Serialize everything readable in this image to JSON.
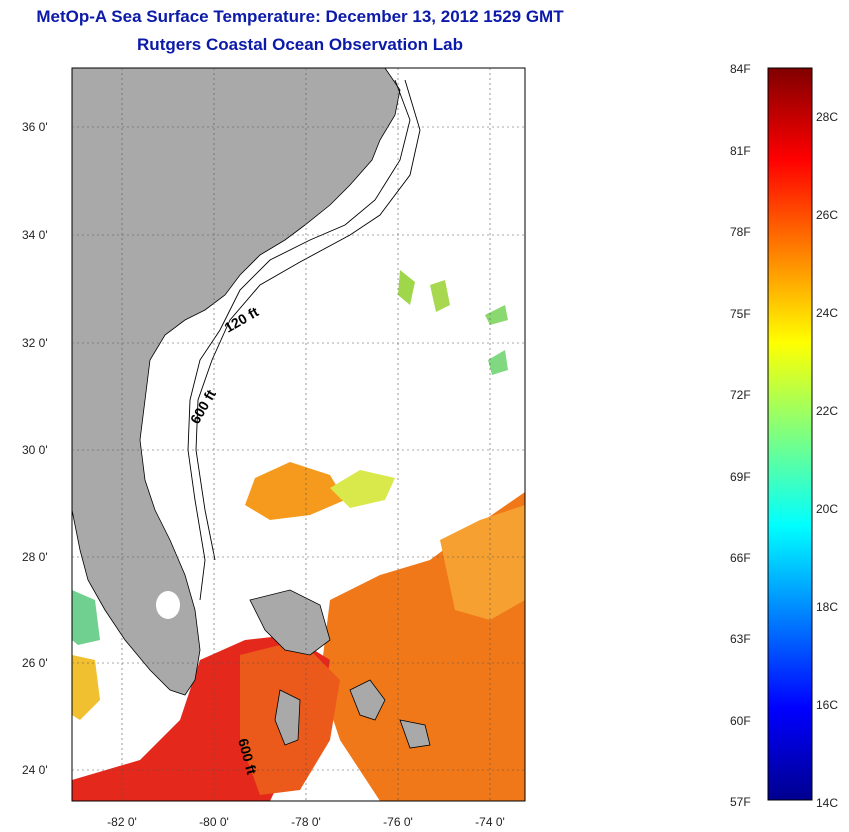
{
  "title": {
    "line1": "MetOp-A Sea Surface Temperature:  December 13, 2012 1529 GMT",
    "line2": "Rutgers Coastal Ocean Observation Lab"
  },
  "map": {
    "lat_labels": [
      "36 0'",
      "34 0'",
      "32 0'",
      "30 0'",
      "28 0'",
      "26 0'",
      "24 0'"
    ],
    "lon_labels": [
      "-82 0'",
      "-80 0'",
      "-78 0'",
      "-76 0'",
      "-74 0'"
    ],
    "isobath_labels": [
      "120 ft",
      "600 ft",
      "600 ft"
    ],
    "colors": {
      "land": "#a9a9a9",
      "ocean": "#ffffff"
    }
  },
  "colorbar": {
    "fahrenheit_labels": [
      "84F",
      "81F",
      "78F",
      "75F",
      "72F",
      "69F",
      "66F",
      "63F",
      "60F",
      "57F"
    ],
    "celsius_labels": [
      "28C",
      "26C",
      "24C",
      "22C",
      "20C",
      "18C",
      "16C",
      "14C"
    ],
    "range_f": [
      57,
      84
    ],
    "range_c": [
      14,
      29
    ],
    "colormap": "jet"
  }
}
